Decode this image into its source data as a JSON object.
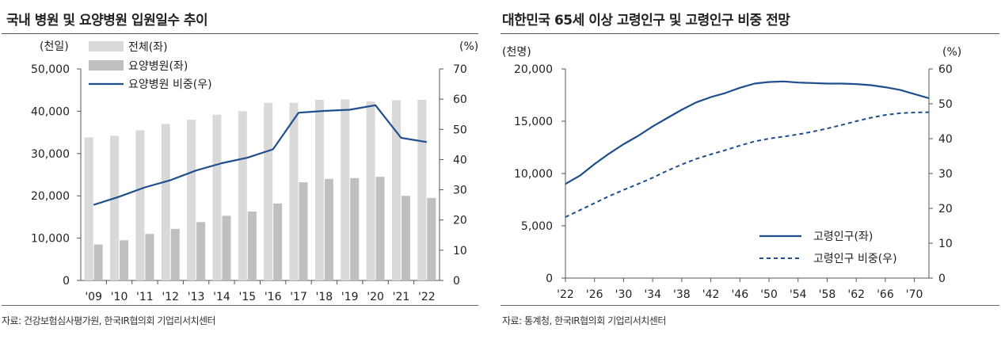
{
  "chart_data": [
    {
      "id": "left",
      "type": "bar+line",
      "title": "국내 병원 및 요양병원 입원일수 추이",
      "left_unit": "(천일)",
      "right_unit": "(%)",
      "categories": [
        "'09",
        "'10",
        "'11",
        "'12",
        "'13",
        "'14",
        "'15",
        "'16",
        "'17",
        "'18",
        "'19",
        "'20",
        "'21",
        "'22"
      ],
      "left_ticks": [
        "0",
        "10,000",
        "20,000",
        "30,000",
        "40,000",
        "50,000"
      ],
      "right_ticks": [
        "0",
        "10",
        "20",
        "30",
        "40",
        "50",
        "60",
        "70"
      ],
      "ylim_left": [
        0,
        50000
      ],
      "ylim_right": [
        0,
        70
      ],
      "series": [
        {
          "name": "전체(좌)",
          "type": "bar",
          "axis": "left",
          "color": "#d9d9d9",
          "values": [
            33800,
            34200,
            35500,
            37000,
            38000,
            39200,
            40000,
            42000,
            42000,
            42700,
            42800,
            42300,
            42600,
            42700
          ]
        },
        {
          "name": "요양병원(좌)",
          "type": "bar",
          "axis": "left",
          "color": "#bfbfbf",
          "values": [
            8500,
            9500,
            11000,
            12200,
            13800,
            15300,
            16300,
            18200,
            23200,
            24000,
            24200,
            24500,
            20000,
            19500
          ]
        },
        {
          "name": "요양병원 비중(우)",
          "type": "line",
          "axis": "right",
          "color": "#1f4e8c",
          "values": [
            25,
            27.7,
            30.8,
            33.2,
            36.4,
            38.8,
            40.6,
            43.4,
            55.5,
            56.1,
            56.5,
            58,
            47.2,
            45.8
          ]
        }
      ],
      "source": "자료: 건강보험심사평가원, 한국IR협의회 기업리서치센터"
    },
    {
      "id": "right",
      "type": "line",
      "title": "대한민국 65세 이상 고령인구 및 고령인구 비중 전망",
      "left_unit": "(천명)",
      "right_unit": "(%)",
      "x_ticks": [
        "'22",
        "'26",
        "'30",
        "'34",
        "'38",
        "'42",
        "'46",
        "'50",
        "'54",
        "'58",
        "'62",
        "'66",
        "'70"
      ],
      "x_tick_years": [
        2022,
        2026,
        2030,
        2034,
        2038,
        2042,
        2046,
        2050,
        2054,
        2058,
        2062,
        2066,
        2070
      ],
      "xlim": [
        2022,
        2072
      ],
      "left_ticks": [
        "0",
        "5,000",
        "10,000",
        "15,000",
        "20,000"
      ],
      "right_ticks": [
        "0",
        "10",
        "20",
        "30",
        "40",
        "50",
        "60"
      ],
      "ylim_left": [
        0,
        20000
      ],
      "ylim_right": [
        0,
        60
      ],
      "series": [
        {
          "name": "고령인구(좌)",
          "axis": "left",
          "style": "solid",
          "color": "#1f4e8c",
          "x": [
            2022,
            2024,
            2026,
            2028,
            2030,
            2032,
            2034,
            2036,
            2038,
            2040,
            2042,
            2044,
            2046,
            2048,
            2050,
            2052,
            2054,
            2056,
            2058,
            2060,
            2062,
            2064,
            2066,
            2068,
            2070,
            2072
          ],
          "values": [
            9000,
            9800,
            10900,
            11900,
            12800,
            13600,
            14500,
            15300,
            16100,
            16800,
            17300,
            17700,
            18200,
            18600,
            18750,
            18800,
            18700,
            18650,
            18600,
            18600,
            18550,
            18450,
            18250,
            18000,
            17600,
            17200
          ]
        },
        {
          "name": "고령인구 비중(우)",
          "axis": "right",
          "style": "dashed",
          "color": "#1f4e8c",
          "x": [
            2022,
            2024,
            2026,
            2028,
            2030,
            2032,
            2034,
            2036,
            2038,
            2040,
            2042,
            2044,
            2046,
            2048,
            2050,
            2052,
            2054,
            2056,
            2058,
            2060,
            2062,
            2064,
            2066,
            2068,
            2070,
            2072
          ],
          "values": [
            17.5,
            19.5,
            21.5,
            23.5,
            25.3,
            27,
            28.8,
            30.8,
            32.6,
            34.2,
            35.5,
            36.7,
            38,
            39.2,
            40,
            40.6,
            41.2,
            42,
            42.9,
            43.9,
            45,
            46,
            46.8,
            47.3,
            47.5,
            47.6
          ]
        }
      ],
      "source": "자료: 통계청, 한국IR협의회 기업리서치센터"
    }
  ]
}
